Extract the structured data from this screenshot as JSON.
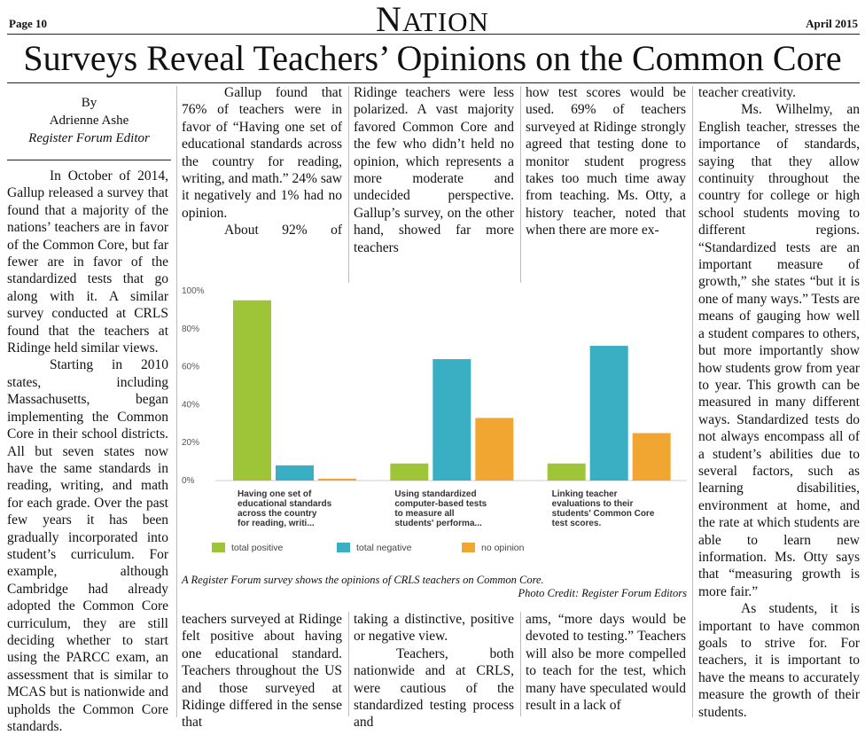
{
  "header": {
    "page_number": "Page 10",
    "section_first": "N",
    "section_rest": "ATION",
    "date": "April 2015"
  },
  "headline": "Surveys Reveal Teachers’ Opinions on the Common Core",
  "byline": {
    "by": "By",
    "author": "Adrienne Ashe",
    "role": "Register Forum Editor"
  },
  "columns": {
    "col1": [
      "In October of 2014, Gallup released a survey that found that a majority of the nations’ teachers are in favor of the Common Core, but far fewer are in favor of the standardized tests that go along with it. A similar survey conducted at CRLS found that the teachers at Ridinge held similar views.",
      "Starting in 2010 states, including Massachusetts, began implementing the Common Core in their school districts. All but seven states now have the same standards in reading, writing, and math for each grade. Over the past few years it has been gradually incorporated into student’s curriculum. For example, although Cambridge had already adopted the Common Core curriculum, they are still deciding whether to start using the PARCC exam, an assessment that is similar to MCAS but is nationwide and upholds the Common Core standards."
    ],
    "col2_top": [
      "Gallup found that 76% of teachers were in favor of “Having one set of educational standards across the country for reading, writing, and math.” 24% saw it negatively and 1% had no opinion.",
      "About 92% of"
    ],
    "col2_bottom": "teachers surveyed at Ridinge felt positive about having one educational standard. Teachers throughout the US and those surveyed at Ridinge differed in the sense that",
    "col3_top": "Ridinge teachers were less polarized. A vast majority favored Common Core and the few who didn’t held no opinion, which represents a more moderate and undecided perspective. Gallup’s survey, on the other hand, showed far more teachers",
    "col3_bottom": [
      "taking a distinctive, positive or negative view.",
      "Teachers, both nationwide and at CRLS, were cautious of the standardized testing process and"
    ],
    "col4_top": "how test scores would be used. 69% of teachers surveyed at Ridinge strongly agreed that testing done to monitor student progress takes too much time away from teaching. Ms. Otty, a history teacher, noted that when there are more ex-",
    "col4_bottom": "ams, “more days would be devoted to testing.” Teachers will also be more compelled to teach for the test, which many have speculated would result in a lack of",
    "col5": [
      "teacher creativity.",
      "Ms. Wilhelmy, an English teacher, stresses the importance of standards, saying that they allow continuity throughout the country for college or high school students moving to different regions. “Standardized tests are an important measure of growth,” she states “but it is one of many ways.” Tests are means of gauging how well a student compares to others, but more importantly show how students grow from year to year. This growth can be measured in many different ways. Standardized tests do not always encompass all of a student’s abilities due to several factors, such as learning disabilities, environment at home, and the rate at which students are able to learn new information. Ms. Otty says that “measuring growth is more fair.”",
      "As students, it is important to have common goals to strive for. For teachers, it is important to have the means to accurately measure the growth of their students."
    ]
  },
  "figure": {
    "caption": "A Register Forum survey shows the opinions of CRLS teachers on Common Core.",
    "credit": "Photo Credit: Register Forum Editors"
  },
  "chart_data": {
    "type": "bar",
    "categories": [
      [
        "Having one set of",
        "educational standards",
        "across the country",
        "for reading, writi..."
      ],
      [
        "Using standardized",
        "computer-based tests",
        "to measure all",
        "students' performa..."
      ],
      [
        "Linking teacher",
        "evaluations to their",
        "students' Common Core",
        "test scores."
      ]
    ],
    "series": [
      {
        "name": "total positive",
        "color": "#9ec538",
        "values": [
          95,
          9,
          9
        ]
      },
      {
        "name": "total negative",
        "color": "#3aaec2",
        "values": [
          8,
          64,
          71
        ]
      },
      {
        "name": "no opinion",
        "color": "#f0a630",
        "values": [
          1,
          33,
          25
        ]
      }
    ],
    "yticks": [
      "0%",
      "20%",
      "40%",
      "60%",
      "80%",
      "100%"
    ],
    "ylim": [
      0,
      100
    ],
    "legend_position": "bottom",
    "grid": false
  }
}
